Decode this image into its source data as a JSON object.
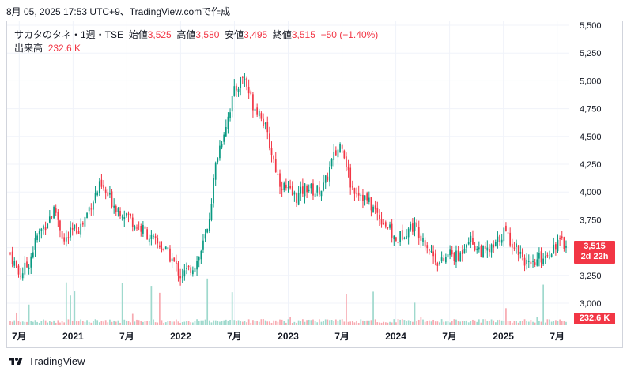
{
  "header": {
    "text": "8月 05, 2025 17:53 UTC+9、TradingView.comで作成"
  },
  "legend": {
    "symbol": "サカタのタネ・1週・TSE",
    "open_label": "始値",
    "open_value": "3,525",
    "high_label": "高値",
    "high_value": "3,580",
    "low_label": "安値",
    "low_value": "3,495",
    "close_label": "終値",
    "close_value": "3,515",
    "change": "−50 (−1.40%)"
  },
  "volume_legend": {
    "label": "出来高",
    "value": "232.6 K"
  },
  "price_tag": {
    "price": "3,515",
    "countdown": "2d 22h"
  },
  "volume_tag": {
    "value": "232.6 K"
  },
  "footer": {
    "brand": "TradingView"
  },
  "colors": {
    "up": "#089981",
    "down": "#f23645",
    "up_volume": "#9fd9cd",
    "down_volume": "#f7a9b0",
    "last_price_line": "#f23645"
  },
  "chart_data": {
    "type": "candlestick",
    "interval": "1週",
    "y_axis": {
      "ticks": [
        "5,500",
        "5,250",
        "5,000",
        "4,750",
        "4,500",
        "4,250",
        "4,000",
        "3,750",
        "3,500",
        "3,250",
        "3,000"
      ],
      "range": [
        2900,
        5550
      ],
      "position": "right"
    },
    "x_axis": {
      "ticks": [
        "7月",
        "2021",
        "7月",
        "2022",
        "7月",
        "2023",
        "7月",
        "2024",
        "7月",
        "2025",
        "7月"
      ],
      "range": [
        "2020-06",
        "2025-08"
      ]
    },
    "last_price": 3515,
    "price_path": [
      [
        "2020-06",
        3450
      ],
      [
        "2020-07",
        3250
      ],
      [
        "2020-08",
        3350
      ],
      [
        "2020-09",
        3600
      ],
      [
        "2020-11",
        3850
      ],
      [
        "2020-12",
        3550
      ],
      [
        "2021-01",
        3650
      ],
      [
        "2021-02",
        3700
      ],
      [
        "2021-03",
        3900
      ],
      [
        "2021-04",
        4050
      ],
      [
        "2021-05",
        3950
      ],
      [
        "2021-06",
        3850
      ],
      [
        "2021-07",
        3800
      ],
      [
        "2021-08",
        3700
      ],
      [
        "2021-09",
        3650
      ],
      [
        "2021-10",
        3550
      ],
      [
        "2021-11",
        3500
      ],
      [
        "2021-12",
        3400
      ],
      [
        "2022-01",
        3250
      ],
      [
        "2022-02",
        3300
      ],
      [
        "2022-03",
        3400
      ],
      [
        "2022-04",
        3650
      ],
      [
        "2022-05",
        4300
      ],
      [
        "2022-06",
        4600
      ],
      [
        "2022-07",
        4900
      ],
      [
        "2022-08",
        5050
      ],
      [
        "2022-09",
        4800
      ],
      [
        "2022-10",
        4700
      ],
      [
        "2022-11",
        4400
      ],
      [
        "2022-12",
        4100
      ],
      [
        "2023-01",
        4000
      ],
      [
        "2023-02",
        3950
      ],
      [
        "2023-03",
        4050
      ],
      [
        "2023-04",
        4000
      ],
      [
        "2023-05",
        4050
      ],
      [
        "2023-06",
        4300
      ],
      [
        "2023-07",
        4450
      ],
      [
        "2023-08",
        4050
      ],
      [
        "2023-09",
        4000
      ],
      [
        "2023-10",
        3900
      ],
      [
        "2023-11",
        3800
      ],
      [
        "2023-12",
        3700
      ],
      [
        "2024-01",
        3550
      ],
      [
        "2024-02",
        3650
      ],
      [
        "2024-03",
        3700
      ],
      [
        "2024-04",
        3600
      ],
      [
        "2024-05",
        3450
      ],
      [
        "2024-06",
        3350
      ],
      [
        "2024-07",
        3450
      ],
      [
        "2024-08",
        3400
      ],
      [
        "2024-09",
        3600
      ],
      [
        "2024-10",
        3500
      ],
      [
        "2024-11",
        3450
      ],
      [
        "2024-12",
        3500
      ],
      [
        "2025-01",
        3650
      ],
      [
        "2025-02",
        3550
      ],
      [
        "2025-03",
        3450
      ],
      [
        "2025-04",
        3300
      ],
      [
        "2025-05",
        3400
      ],
      [
        "2025-06",
        3450
      ],
      [
        "2025-07",
        3550
      ],
      [
        "2025-08",
        3515
      ]
    ]
  }
}
